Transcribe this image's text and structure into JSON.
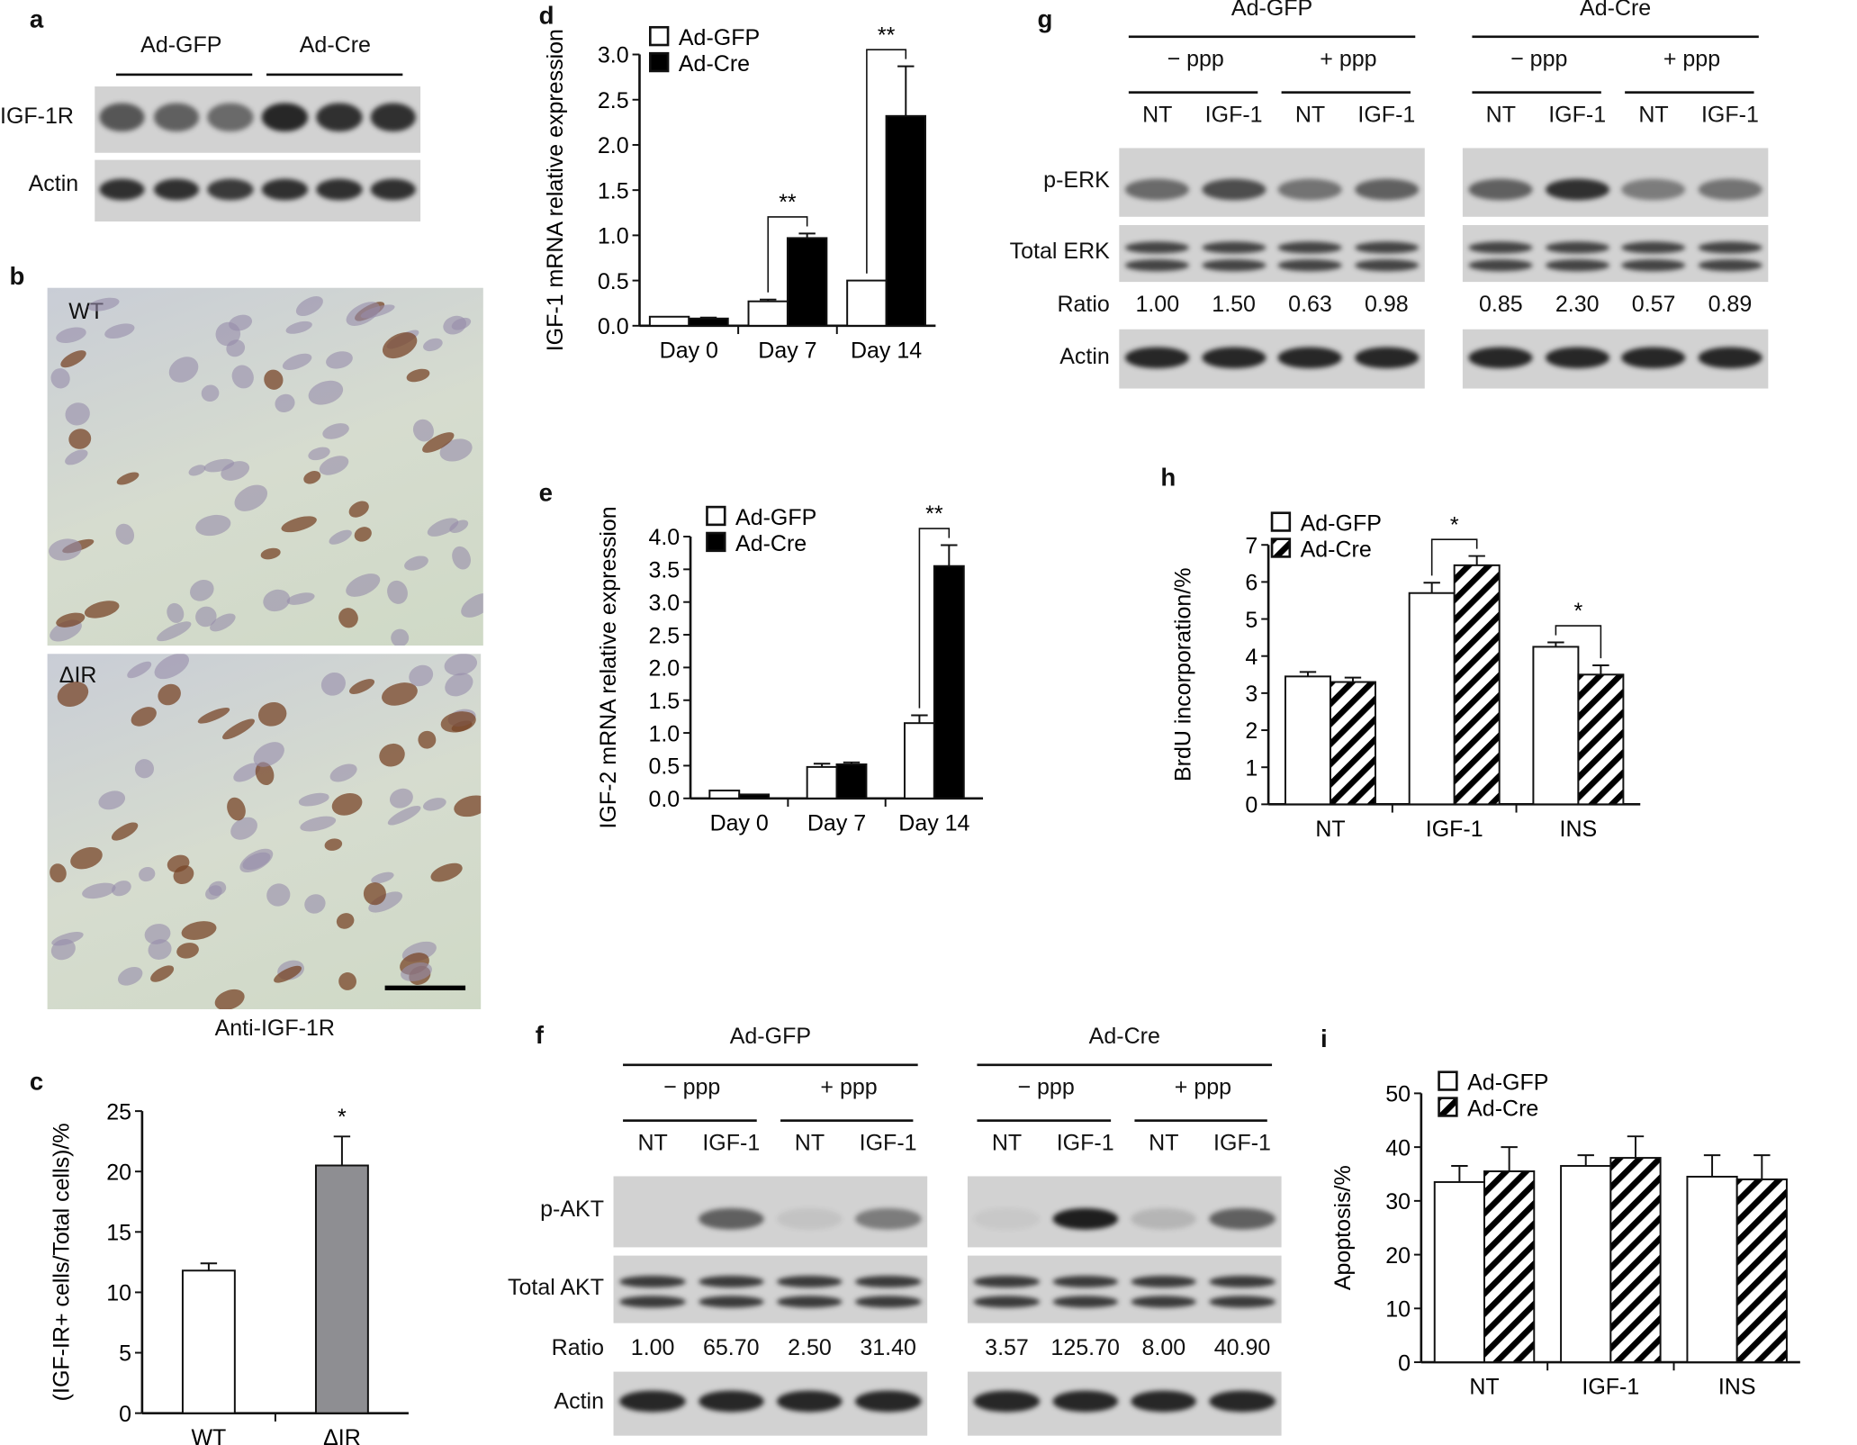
{
  "panels": {
    "a": {
      "label": "a",
      "groups": [
        "Ad-GFP",
        "Ad-Cre"
      ],
      "rows": [
        "IGF-1R",
        "Actin"
      ]
    },
    "b": {
      "label": "b",
      "images": [
        "WT",
        "ΔIR"
      ],
      "caption": "Anti-IGF-1R"
    },
    "c": {
      "label": "c"
    },
    "d": {
      "label": "d"
    },
    "e": {
      "label": "e"
    },
    "f": {
      "label": "f",
      "groups": [
        "Ad-GFP",
        "Ad-Cre"
      ],
      "ppp": [
        "− ppp",
        "+ ppp"
      ],
      "lanes": [
        "NT",
        "IGF-1",
        "NT",
        "IGF-1"
      ],
      "rows": [
        "p-AKT",
        "Total AKT",
        "Ratio",
        "Actin"
      ],
      "ratios": {
        "left": [
          "1.00",
          "65.70",
          "2.50",
          "31.40"
        ],
        "right": [
          "3.57",
          "125.70",
          "8.00",
          "40.90"
        ]
      }
    },
    "g": {
      "label": "g",
      "groups": [
        "Ad-GFP",
        "Ad-Cre"
      ],
      "ppp": [
        "− ppp",
        "+ ppp"
      ],
      "lanes": [
        "NT",
        "IGF-1",
        "NT",
        "IGF-1"
      ],
      "rows": [
        "p-ERK",
        "Total ERK",
        "Ratio",
        "Actin"
      ],
      "ratios": {
        "left": [
          "1.00",
          "1.50",
          "0.63",
          "0.98"
        ],
        "right": [
          "0.85",
          "2.30",
          "0.57",
          "0.89"
        ]
      }
    },
    "h": {
      "label": "h"
    },
    "i": {
      "label": "i"
    }
  },
  "chart_data": [
    {
      "id": "c",
      "type": "bar",
      "categories": [
        "WT",
        "ΔIR"
      ],
      "ylabel": "(IGF-IR+ cells/Total cells)/%",
      "ylim": [
        0,
        25
      ],
      "yticks": [
        0,
        5,
        10,
        15,
        20,
        25
      ],
      "series": [
        {
          "values": [
            11.8,
            20.5
          ],
          "errors": [
            0.6,
            2.4
          ],
          "colors": [
            "#ffffff",
            "#8e8e92"
          ]
        }
      ],
      "annotations": [
        {
          "text": "*",
          "category": "ΔIR"
        }
      ],
      "grid": false
    },
    {
      "id": "d",
      "type": "bar",
      "categories": [
        "Day 0",
        "Day 7",
        "Day 14"
      ],
      "ylabel": "IGF-1 mRNA relative expression",
      "ylim": [
        0,
        3.0
      ],
      "yticks": [
        "0.0",
        "0.5",
        "1.0",
        "1.5",
        "2.0",
        "2.5",
        "3.0"
      ],
      "series": [
        {
          "name": "Ad-GFP",
          "values": [
            0.1,
            0.27,
            0.5
          ],
          "errors": [
            0,
            0.02,
            0
          ],
          "fill": "#ffffff"
        },
        {
          "name": "Ad-Cre",
          "values": [
            0.08,
            0.97,
            2.32
          ],
          "errors": [
            0.01,
            0.05,
            0.55
          ],
          "fill": "#000000"
        }
      ],
      "annotations": [
        {
          "text": "**",
          "category": "Day 7"
        },
        {
          "text": "**",
          "category": "Day 14"
        }
      ],
      "legend": "top-left",
      "grid": false
    },
    {
      "id": "e",
      "type": "bar",
      "categories": [
        "Day 0",
        "Day 7",
        "Day 14"
      ],
      "ylabel": "IGF-2 mRNA relative expression",
      "ylim": [
        0,
        4.0
      ],
      "yticks": [
        "0.0",
        "0.5",
        "1.0",
        "1.5",
        "2.0",
        "2.5",
        "3.0",
        "3.5",
        "4.0"
      ],
      "series": [
        {
          "name": "Ad-GFP",
          "values": [
            0.12,
            0.48,
            1.15
          ],
          "errors": [
            0,
            0.05,
            0.12
          ],
          "fill": "#ffffff"
        },
        {
          "name": "Ad-Cre",
          "values": [
            0.06,
            0.52,
            3.55
          ],
          "errors": [
            0,
            0.03,
            0.32
          ],
          "fill": "#000000"
        }
      ],
      "annotations": [
        {
          "text": "**",
          "category": "Day 14"
        }
      ],
      "legend": "top-left",
      "grid": false
    },
    {
      "id": "h",
      "type": "bar",
      "categories": [
        "NT",
        "IGF-1",
        "INS"
      ],
      "ylabel": "BrdU incorporation/%",
      "ylim": [
        0,
        7
      ],
      "yticks": [
        0,
        1,
        2,
        3,
        4,
        5,
        6,
        7
      ],
      "series": [
        {
          "name": "Ad-GFP",
          "values": [
            3.45,
            5.7,
            4.25
          ],
          "errors": [
            0.12,
            0.28,
            0.12
          ],
          "fill": "#ffffff"
        },
        {
          "name": "Ad-Cre",
          "values": [
            3.3,
            6.45,
            3.5
          ],
          "errors": [
            0.12,
            0.25,
            0.25
          ],
          "fill": "hatch"
        }
      ],
      "annotations": [
        {
          "text": "*",
          "category": "IGF-1"
        },
        {
          "text": "*",
          "category": "INS"
        }
      ],
      "legend": "top-left",
      "grid": false
    },
    {
      "id": "i",
      "type": "bar",
      "categories": [
        "NT",
        "IGF-1",
        "INS"
      ],
      "ylabel": "Apoptosis/%",
      "ylim": [
        0,
        50
      ],
      "yticks": [
        0,
        10,
        20,
        30,
        40,
        50
      ],
      "series": [
        {
          "name": "Ad-GFP",
          "values": [
            33.5,
            36.5,
            34.5
          ],
          "errors": [
            3,
            2,
            4
          ],
          "fill": "#ffffff"
        },
        {
          "name": "Ad-Cre",
          "values": [
            35.5,
            38,
            34
          ],
          "errors": [
            4.5,
            4,
            4.5
          ],
          "fill": "hatch"
        }
      ],
      "annotations": [],
      "legend": "top-left",
      "grid": false
    }
  ]
}
